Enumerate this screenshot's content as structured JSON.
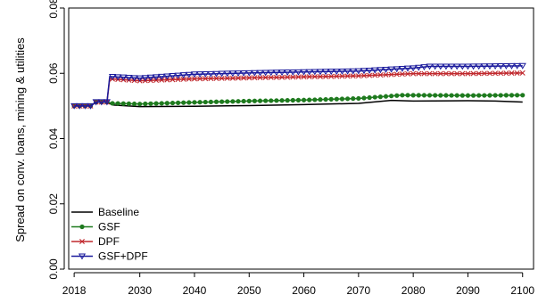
{
  "chart_data": {
    "type": "line",
    "xlabel": "",
    "ylabel": "Spread on conv. loans, mining & utilities",
    "xlim": [
      2017,
      2102
    ],
    "ylim": [
      0.0,
      0.08
    ],
    "xticks": [
      2018,
      2030,
      2040,
      2050,
      2060,
      2070,
      2080,
      2090,
      2100
    ],
    "xtick_labels": [
      "2018",
      "2030",
      "2040",
      "2050",
      "2060",
      "2070",
      "2080",
      "2090",
      "2100"
    ],
    "yticks": [
      0.0,
      0.02,
      0.04,
      0.06,
      0.08
    ],
    "ytick_labels": [
      "0.00",
      "0.02",
      "0.04",
      "0.06",
      "0.08"
    ],
    "grid": false,
    "legend_position": "bottom-left",
    "series": [
      {
        "name": "Baseline",
        "color": "#000000",
        "marker": "none",
        "points": [
          [
            2018,
            0.05
          ],
          [
            2021,
            0.05
          ],
          [
            2022,
            0.0512
          ],
          [
            2024,
            0.0512
          ],
          [
            2025,
            0.0503
          ],
          [
            2030,
            0.0498
          ],
          [
            2040,
            0.0499
          ],
          [
            2050,
            0.0501
          ],
          [
            2060,
            0.0504
          ],
          [
            2070,
            0.0508
          ],
          [
            2076,
            0.0517
          ],
          [
            2080,
            0.0515
          ],
          [
            2090,
            0.0516
          ],
          [
            2095,
            0.0515
          ],
          [
            2100,
            0.0512
          ]
        ]
      },
      {
        "name": "GSF",
        "color": "#1e7a1e",
        "marker": "circle",
        "points": [
          [
            2018,
            0.05
          ],
          [
            2021,
            0.05
          ],
          [
            2022,
            0.0512
          ],
          [
            2024,
            0.0512
          ],
          [
            2025,
            0.0508
          ],
          [
            2030,
            0.0506
          ],
          [
            2040,
            0.0511
          ],
          [
            2050,
            0.0515
          ],
          [
            2060,
            0.0518
          ],
          [
            2070,
            0.0523
          ],
          [
            2078,
            0.0533
          ],
          [
            2090,
            0.0532
          ],
          [
            2100,
            0.0533
          ]
        ]
      },
      {
        "name": "DPF",
        "color": "#c0282d",
        "marker": "x",
        "points": [
          [
            2018,
            0.05
          ],
          [
            2021,
            0.05
          ],
          [
            2022,
            0.0512
          ],
          [
            2024,
            0.0512
          ],
          [
            2024.5,
            0.0583
          ],
          [
            2030,
            0.0577
          ],
          [
            2040,
            0.0583
          ],
          [
            2050,
            0.0586
          ],
          [
            2060,
            0.0589
          ],
          [
            2070,
            0.0592
          ],
          [
            2080,
            0.0599
          ],
          [
            2090,
            0.0599
          ],
          [
            2100,
            0.0601
          ]
        ]
      },
      {
        "name": "GSF+DPF",
        "color": "#1a1a9c",
        "marker": "triangle-down",
        "points": [
          [
            2018,
            0.05
          ],
          [
            2021,
            0.05
          ],
          [
            2022,
            0.0512
          ],
          [
            2024,
            0.0512
          ],
          [
            2024.5,
            0.059
          ],
          [
            2030,
            0.0585
          ],
          [
            2040,
            0.0597
          ],
          [
            2050,
            0.0601
          ],
          [
            2060,
            0.0604
          ],
          [
            2070,
            0.0607
          ],
          [
            2080,
            0.0616
          ],
          [
            2083,
            0.0621
          ],
          [
            2090,
            0.0621
          ],
          [
            2100,
            0.0623
          ]
        ]
      }
    ]
  }
}
